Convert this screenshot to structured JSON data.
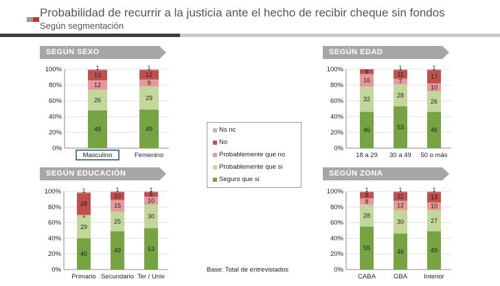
{
  "header": {
    "title": "Probabilidad de recurrir a la justicia ante el hecho de recibir cheque sin fondos",
    "subtitle": "Según segmentación",
    "logo_colors": [
      "#9a9a9a",
      "#c0392b"
    ]
  },
  "legend": {
    "items": [
      {
        "name": "Ns nc",
        "color": "#b9b9b9"
      },
      {
        "name": "No",
        "color": "#c0504d"
      },
      {
        "name": "Probablemente que no",
        "color": "#e6999a"
      },
      {
        "name": "Probablemente que si",
        "color": "#c4d79b"
      },
      {
        "name": "Seguro que si",
        "color": "#77a442"
      }
    ]
  },
  "base_note": "Base: Total de entrevistados",
  "chart_data": [
    {
      "type": "bar",
      "stacked": true,
      "title": "SEGÚN SEXO",
      "categories": [
        "Masculino",
        "Femenino"
      ],
      "yticks": [
        "0%",
        "20%",
        "40%",
        "60%",
        "80%",
        "100%"
      ],
      "ylim": [
        0,
        100
      ],
      "series": [
        {
          "name": "Seguro que si",
          "values": [
            48,
            49
          ]
        },
        {
          "name": "Probablemente que si",
          "values": [
            26,
            29
          ]
        },
        {
          "name": "Probablemente que no",
          "values": [
            12,
            9
          ]
        },
        {
          "name": "No",
          "values": [
            13,
            12
          ]
        },
        {
          "name": "Ns nc",
          "values": [
            1,
            1
          ]
        }
      ]
    },
    {
      "type": "bar",
      "stacked": true,
      "title": "SEGÚN EDAD",
      "categories": [
        "18 a 29",
        "30 a 49",
        "50 o más"
      ],
      "yticks": [
        "0%",
        "20%",
        "40%",
        "60%",
        "80%",
        "100%"
      ],
      "ylim": [
        0,
        100
      ],
      "series": [
        {
          "name": "Seguro que si",
          "values": [
            46,
            53,
            46
          ]
        },
        {
          "name": "Probablemente que si",
          "values": [
            32,
            28,
            26
          ]
        },
        {
          "name": "Probablemente que no",
          "values": [
            16,
            7,
            10
          ]
        },
        {
          "name": "No",
          "values": [
            6,
            11,
            17
          ]
        },
        {
          "name": "Ns nc",
          "values": [
            0,
            1,
            1
          ]
        }
      ]
    },
    {
      "type": "bar",
      "stacked": true,
      "title": "SEGÚN EDUCACIÓN",
      "categories": [
        "Primario",
        "Secundario",
        "Ter / Univ"
      ],
      "yticks": [
        "0%",
        "20%",
        "40%",
        "60%",
        "80%",
        "100%"
      ],
      "ylim": [
        0,
        100
      ],
      "series": [
        {
          "name": "Seguro que si",
          "values": [
            40,
            49,
            53
          ]
        },
        {
          "name": "Probablemente que si",
          "values": [
            29,
            25,
            30
          ]
        },
        {
          "name": "Probablemente que no",
          "values": [
            1,
            15,
            10
          ]
        },
        {
          "name": "No",
          "values": [
            28,
            10,
            6
          ]
        },
        {
          "name": "Ns nc",
          "values": [
            1,
            1,
            1
          ]
        }
      ]
    },
    {
      "type": "bar",
      "stacked": true,
      "title": "SEGÚN ZONA",
      "categories": [
        "CABA",
        "GBA",
        "Interior"
      ],
      "yticks": [
        "0%",
        "20%",
        "40%",
        "60%",
        "80%",
        "100%"
      ],
      "ylim": [
        0,
        100
      ],
      "series": [
        {
          "name": "Seguro que si",
          "values": [
            55,
            46,
            49
          ]
        },
        {
          "name": "Probablemente que si",
          "values": [
            28,
            30,
            27
          ]
        },
        {
          "name": "Probablemente que no",
          "values": [
            8,
            12,
            10
          ]
        },
        {
          "name": "No",
          "values": [
            8,
            11,
            13
          ]
        },
        {
          "name": "Ns nc",
          "values": [
            1,
            1,
            1
          ]
        }
      ]
    }
  ]
}
